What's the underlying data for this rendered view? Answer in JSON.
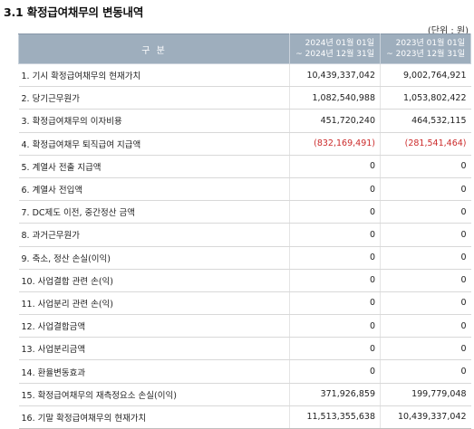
{
  "section": {
    "title": "3.1  확정급여채무의 변동내역",
    "unit": "(단위 : 원)"
  },
  "table": {
    "header": {
      "label": "구 분",
      "current": [
        "2024년 01월 01일",
        "~ 2024년 12월 31일"
      ],
      "previous": [
        "2023년 01월 01일",
        "~ 2023년 12월 31일"
      ]
    },
    "rows": [
      {
        "label": "1. 기시 확정급여채무의 현재가치",
        "current": "10,439,337,042",
        "previous": "9,002,764,921"
      },
      {
        "label": "2. 당기근무원가",
        "current": "1,082,540,988",
        "previous": "1,053,802,422"
      },
      {
        "label": "3. 확정급여채무의 이자비용",
        "current": "451,720,240",
        "previous": "464,532,115"
      },
      {
        "label": "4. 확정급여채무 퇴직급여 지급액",
        "current": "(832,169,491)",
        "previous": "(281,541,464)",
        "negative": true
      },
      {
        "label": "5. 계열사 전출 지급액",
        "current": "0",
        "previous": "0"
      },
      {
        "label": "6. 계열사 전입액",
        "current": "0",
        "previous": "0"
      },
      {
        "label": "7. DC제도 이전, 중간정산 금액",
        "current": "0",
        "previous": "0"
      },
      {
        "label": "8. 과거근무원가",
        "current": "0",
        "previous": "0"
      },
      {
        "label": "9. 축소, 정산 손실(이익)",
        "current": "0",
        "previous": "0"
      },
      {
        "label": "10. 사업결합 관련 손(익)",
        "current": "0",
        "previous": "0"
      },
      {
        "label": "11. 사업분리 관련 손(익)",
        "current": "0",
        "previous": "0"
      },
      {
        "label": "12. 사업결합금액",
        "current": "0",
        "previous": "0"
      },
      {
        "label": "13. 사업분리금액",
        "current": "0",
        "previous": "0"
      },
      {
        "label": "14. 환율변동효과",
        "current": "0",
        "previous": "0"
      },
      {
        "label": "15. 확정급여채무의 재측정요소 손실(이익)",
        "current": "371,926,859",
        "previous": "199,779,048"
      },
      {
        "label": "16. 기말 확정급여채무의 현재가치",
        "current": "11,513,355,638",
        "previous": "10,439,337,042"
      }
    ]
  },
  "colors": {
    "header_bg": "#9eaebd",
    "header_text": "#ffffff",
    "negative_text": "#cc2b2b"
  }
}
